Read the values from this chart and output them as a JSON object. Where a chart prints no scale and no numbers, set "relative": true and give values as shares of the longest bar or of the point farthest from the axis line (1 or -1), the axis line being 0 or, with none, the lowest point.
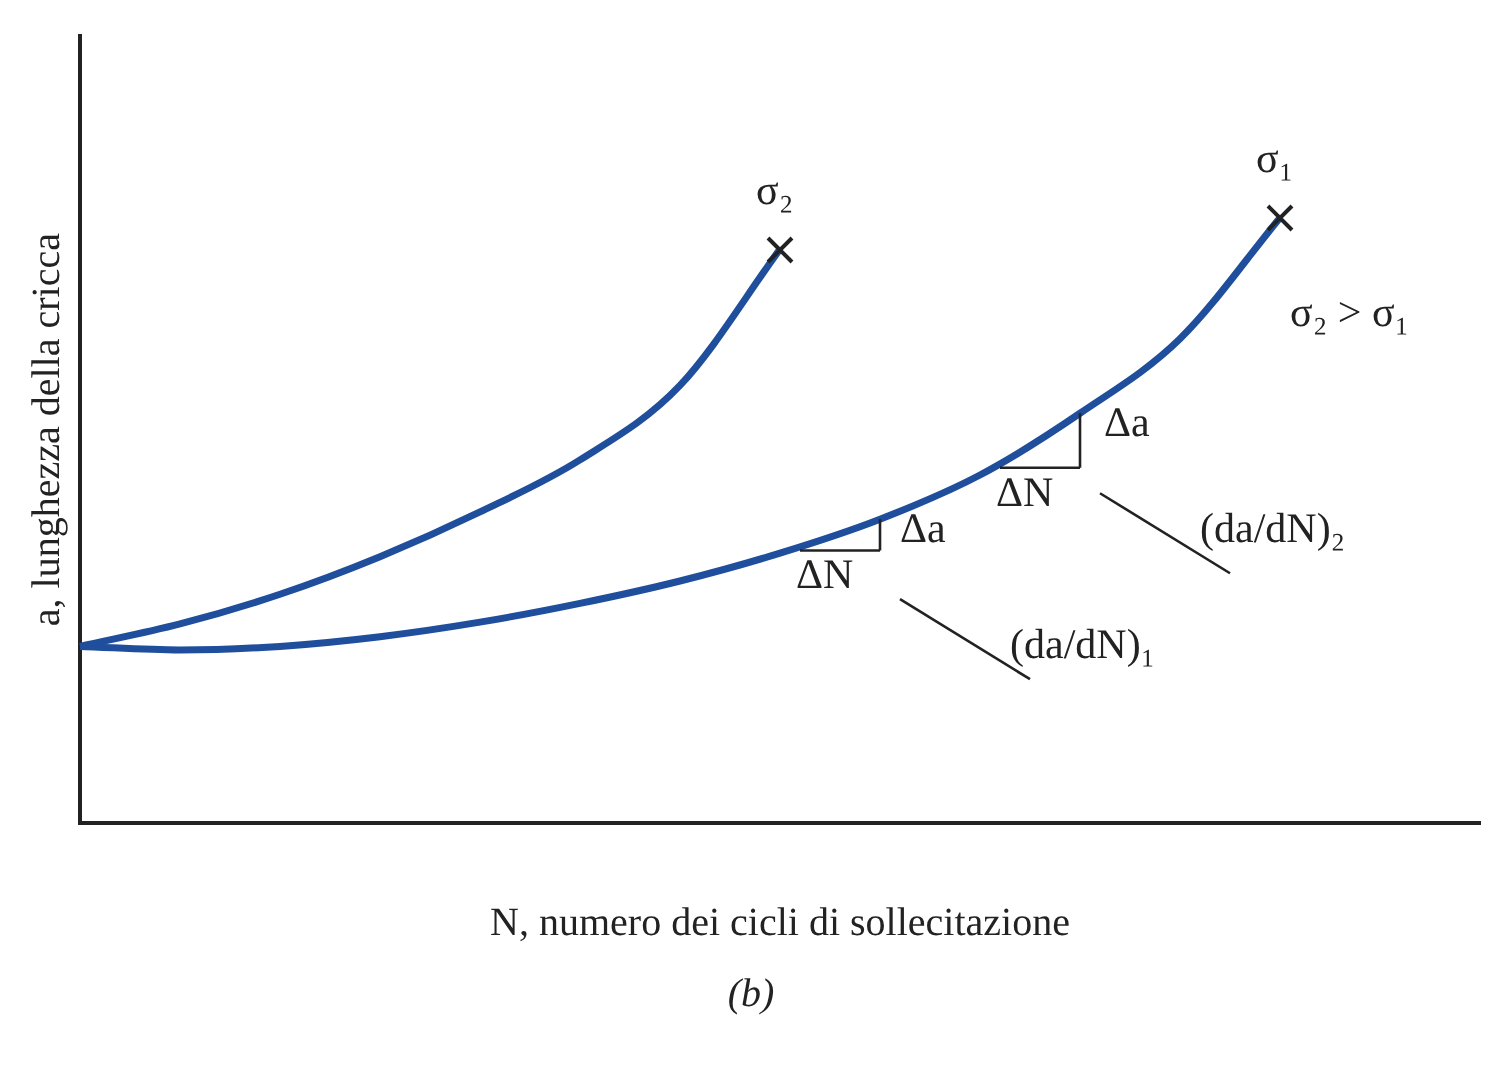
{
  "chart_data": {
    "type": "line",
    "relative": true,
    "xlabel": "N, numero dei cicli di sollecitazione",
    "ylabel": "a, lunghezza della cricca",
    "categories": [
      null,
      null,
      null,
      null,
      null,
      null,
      null,
      null,
      null,
      null,
      null,
      null,
      null,
      null,
      null
    ],
    "series": [
      {
        "name": "σ₁",
        "color": "#1f4e9c",
        "values": [
          0.292,
          0.286,
          0.292,
          0.308,
          0.332,
          0.363,
          0.4,
          0.446,
          0.502,
          0.575,
          0.677,
          0.8,
          1,
          null,
          null
        ]
      },
      {
        "name": "σ₂",
        "color": "#1f4e9c",
        "values": [
          0.292,
          0.329,
          0.378,
          0.44,
          0.514,
          0.6,
          0.723,
          0.948,
          null,
          null,
          null,
          null,
          null,
          null,
          null
        ]
      }
    ],
    "grid": false,
    "legend": false,
    "annotations": [
      "σ₂ > σ₁",
      "Δa",
      "ΔN",
      "(da/dN)₁",
      "Δa",
      "ΔN",
      "(da/dN)₂",
      "(b)"
    ]
  }
}
